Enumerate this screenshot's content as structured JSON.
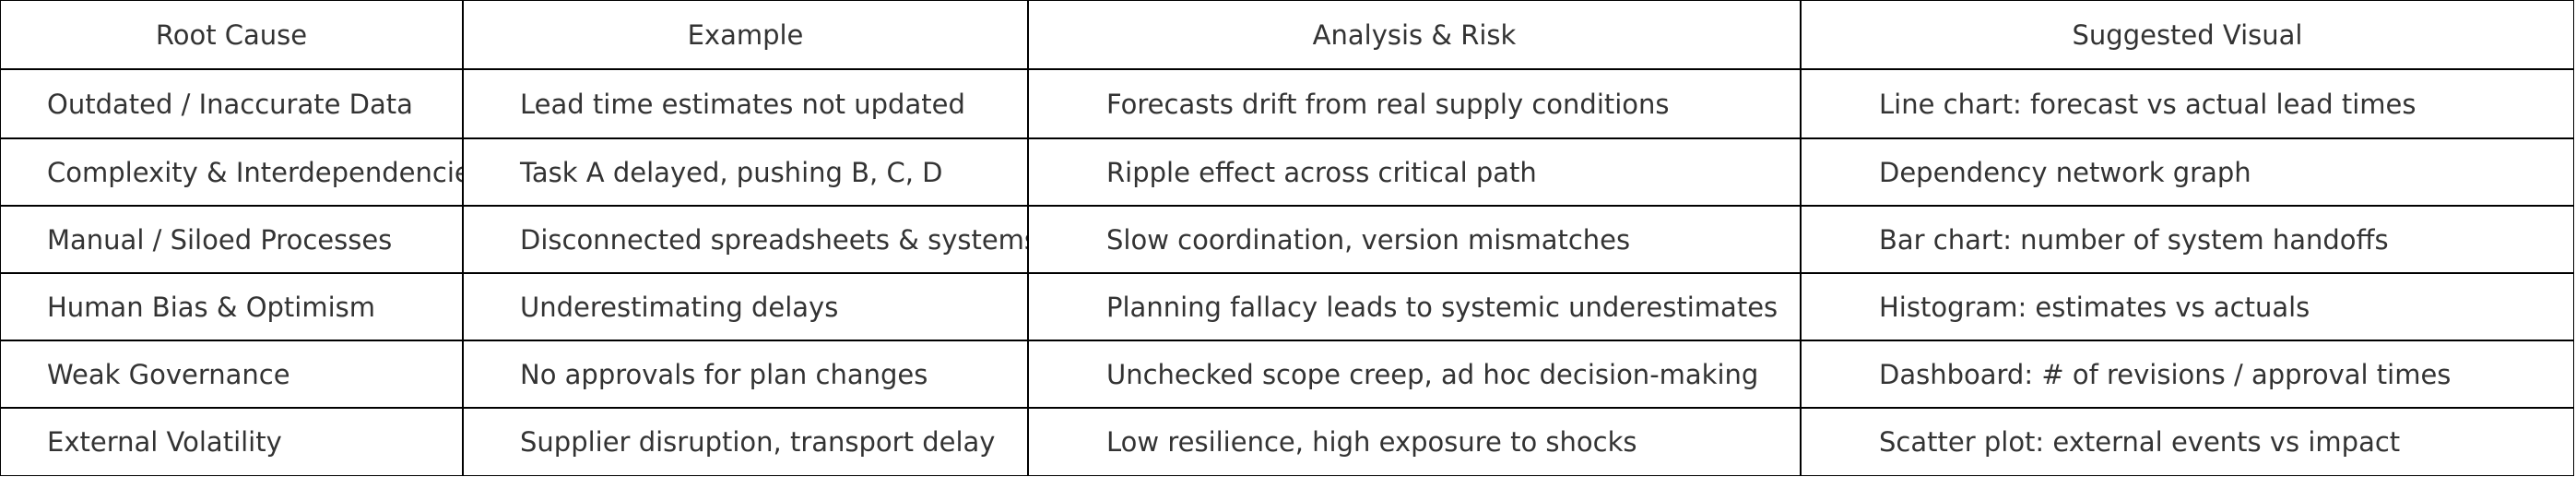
{
  "table": {
    "header": [
      "Root Cause",
      "Example",
      "Analysis & Risk",
      "Suggested Visual"
    ],
    "rows": [
      [
        "Outdated / Inaccurate Data",
        "Lead time estimates not updated",
        "Forecasts drift from real supply conditions",
        "Line chart: forecast vs actual lead times"
      ],
      [
        "Complexity & Interdependencies",
        "Task A delayed, pushing B, C, D",
        "Ripple effect across critical path",
        "Dependency network graph"
      ],
      [
        "Manual / Siloed Processes",
        "Disconnected spreadsheets & systems",
        "Slow coordination, version mismatches",
        "Bar chart: number of system handoffs"
      ],
      [
        "Human Bias & Optimism",
        "Underestimating delays",
        "Planning fallacy leads to systemic underestimates",
        "Histogram: estimates vs actuals"
      ],
      [
        "Weak Governance",
        "No approvals for plan changes",
        "Unchecked scope creep, ad hoc decision-making",
        "Dashboard: # of revisions / approval times"
      ],
      [
        "External Volatility",
        "Supplier disruption, transport delay",
        "Low resilience, high exposure to shocks",
        "Scatter plot: external events vs impact"
      ]
    ]
  }
}
